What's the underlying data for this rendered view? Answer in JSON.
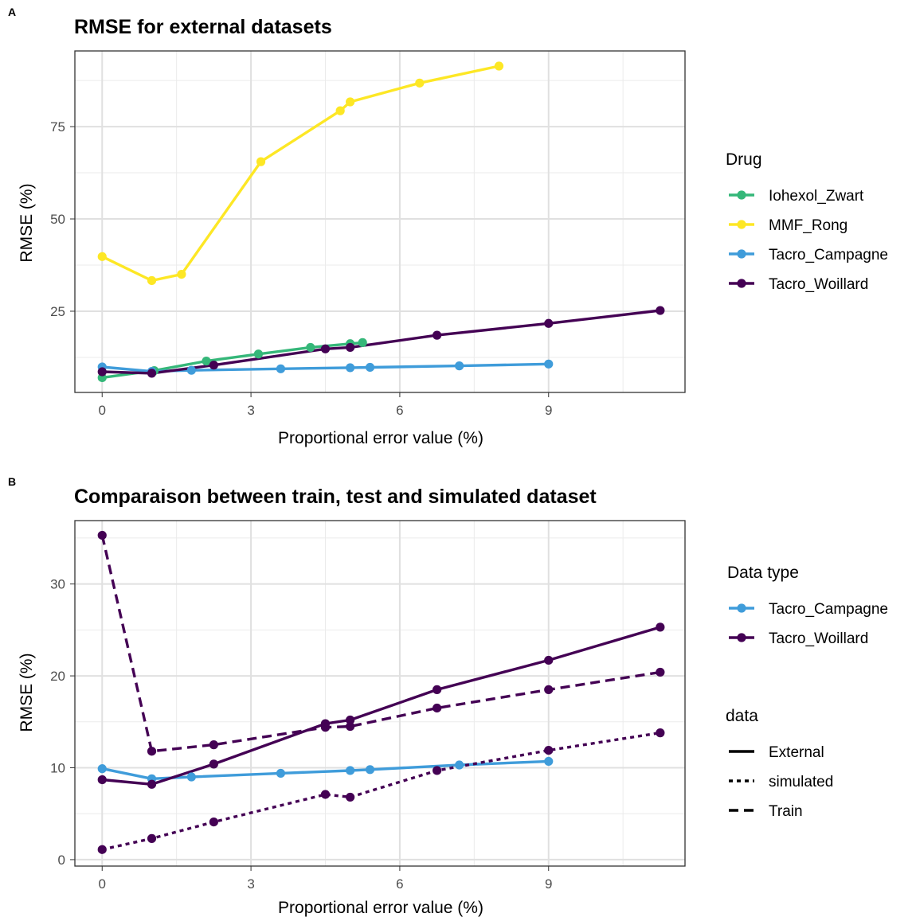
{
  "chart_data": [
    {
      "panel": "A",
      "type": "line",
      "title": "RMSE for external datasets",
      "xlabel": "Proportional error value (%)",
      "ylabel": "RMSE (%)",
      "xticks": [
        0,
        3,
        6,
        9
      ],
      "yticks": [
        25,
        50,
        75
      ],
      "xlim": [
        -0.55,
        11.75
      ],
      "ylim": [
        3.0,
        95.5
      ],
      "grid": true,
      "legend": {
        "title": "Drug",
        "position": "right"
      },
      "series": [
        {
          "name": "Iohexol_Zwart",
          "color": "#35b779",
          "dash": "solid",
          "x": [
            0,
            1.05,
            2.1,
            3.15,
            4.2,
            5.0,
            5.25
          ],
          "y": [
            7.0,
            8.9,
            11.5,
            13.4,
            15.2,
            16.2,
            16.5
          ]
        },
        {
          "name": "MMF_Rong",
          "color": "#fde725",
          "dash": "solid",
          "x": [
            0,
            1.0,
            1.6,
            3.2,
            4.8,
            5.0,
            6.4,
            8.0
          ],
          "y": [
            39.8,
            33.3,
            35.0,
            65.5,
            79.3,
            81.7,
            86.8,
            91.4
          ]
        },
        {
          "name": "Tacro_Campagne",
          "color": "#3f9cda",
          "dash": "solid",
          "x": [
            0,
            1.0,
            1.8,
            3.6,
            5.0,
            5.4,
            7.2,
            9.0
          ],
          "y": [
            9.9,
            8.7,
            9.0,
            9.4,
            9.7,
            9.8,
            10.2,
            10.7
          ]
        },
        {
          "name": "Tacro_Woillard",
          "color": "#440154",
          "dash": "solid",
          "x": [
            0,
            1.0,
            2.25,
            4.5,
            5.0,
            6.75,
            9.0,
            11.25
          ],
          "y": [
            8.6,
            8.2,
            10.4,
            14.8,
            15.2,
            18.5,
            21.7,
            25.2
          ]
        }
      ]
    },
    {
      "panel": "B",
      "type": "line",
      "title": "Comparaison between train, test and simulated dataset",
      "xlabel": "Proportional error value (%)",
      "ylabel": "RMSE (%)",
      "xticks": [
        0,
        3,
        6,
        9
      ],
      "yticks": [
        0,
        10,
        20,
        30
      ],
      "xlim": [
        -0.55,
        11.75
      ],
      "ylim": [
        -0.7,
        36.9
      ],
      "grid": true,
      "legends": [
        {
          "title": "Data type",
          "position": "right",
          "items": [
            {
              "label": "Tacro_Campagne",
              "color": "#3f9cda"
            },
            {
              "label": "Tacro_Woillard",
              "color": "#440154"
            }
          ]
        },
        {
          "title": "data",
          "position": "right",
          "items": [
            {
              "label": "External",
              "dash": "solid"
            },
            {
              "label": "simulated",
              "dash": "dotted"
            },
            {
              "label": "Train",
              "dash": "dashed"
            }
          ]
        }
      ],
      "series": [
        {
          "group": "Tacro_Campagne",
          "data": "External",
          "color": "#3f9cda",
          "dash": "solid",
          "x": [
            0,
            1.0,
            1.8,
            3.6,
            5.0,
            5.4,
            7.2,
            9.0
          ],
          "y": [
            9.9,
            8.8,
            9.0,
            9.4,
            9.7,
            9.8,
            10.3,
            10.7
          ]
        },
        {
          "group": "Tacro_Woillard",
          "data": "External",
          "color": "#440154",
          "dash": "solid",
          "x": [
            0,
            1.0,
            2.25,
            4.5,
            5.0,
            6.75,
            9.0,
            11.25
          ],
          "y": [
            8.7,
            8.2,
            10.4,
            14.8,
            15.2,
            18.5,
            21.7,
            25.3
          ]
        },
        {
          "group": "Tacro_Woillard",
          "data": "Train",
          "color": "#440154",
          "dash": "dashed",
          "x": [
            0,
            1.0,
            2.25,
            4.5,
            5.0,
            6.75,
            9.0,
            11.25
          ],
          "y": [
            35.3,
            11.8,
            12.5,
            14.4,
            14.5,
            16.5,
            18.5,
            20.4
          ]
        },
        {
          "group": "Tacro_Woillard",
          "data": "simulated",
          "color": "#440154",
          "dash": "dotted",
          "x": [
            0,
            1.0,
            2.25,
            4.5,
            5.0,
            6.75,
            9.0,
            11.25
          ],
          "y": [
            1.1,
            2.3,
            4.1,
            7.1,
            6.8,
            9.7,
            11.9,
            13.8
          ]
        }
      ]
    }
  ]
}
